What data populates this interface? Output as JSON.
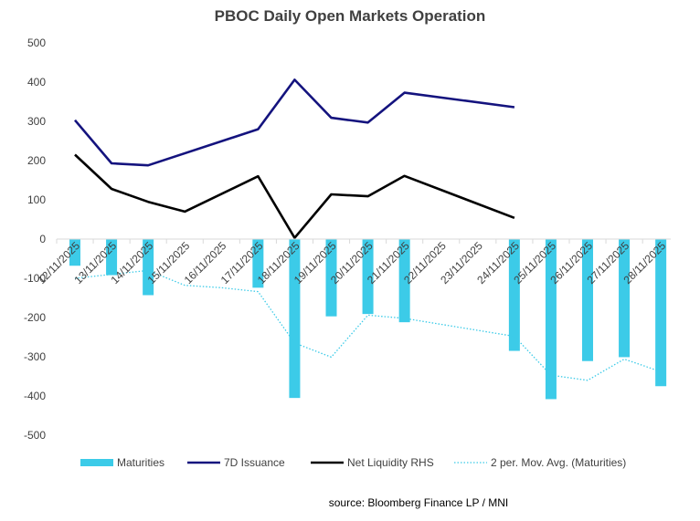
{
  "chart_data": {
    "type": "bar",
    "title": "PBOC Daily Open Markets Operation",
    "categories": [
      "12/11/2025",
      "13/11/2025",
      "14/11/2025",
      "15/11/2025",
      "16/11/2025",
      "17/11/2025",
      "18/11/2025",
      "19/11/2025",
      "20/11/2025",
      "21/11/2025",
      "22/11/2025",
      "23/11/2025",
      "24/11/2025",
      "25/11/2025",
      "26/11/2025",
      "27/11/2025",
      "28/11/2025"
    ],
    "ylim": [
      -500,
      500
    ],
    "yticks": [
      500,
      400,
      300,
      200,
      100,
      0,
      -100,
      -200,
      -300,
      -400,
      -500
    ],
    "series": [
      {
        "name": "Maturities",
        "kind": "bar",
        "color": "#3CCBE8",
        "values": [
          -68,
          -92,
          -143,
          null,
          null,
          -124,
          -405,
          -197,
          -191,
          -212,
          null,
          null,
          -285,
          -408,
          -311,
          -301,
          -375
        ]
      },
      {
        "name": "7D Issuance",
        "kind": "line",
        "color": "#14137E",
        "values": [
          303,
          193,
          188,
          null,
          null,
          280,
          406,
          309,
          297,
          373,
          null,
          null,
          336,
          null,
          null,
          null,
          null
        ]
      },
      {
        "name": "Net Liquidity RHS",
        "kind": "line",
        "color": "#000000",
        "values": [
          215,
          128,
          95,
          70,
          null,
          160,
          3,
          114,
          109,
          161,
          null,
          null,
          54,
          null,
          null,
          null,
          null
        ]
      },
      {
        "name": "2 per. Mov. Avg. (Maturities)",
        "kind": "dotted",
        "color": "#3CCBE8",
        "values": [
          -100,
          -90,
          -80,
          -118,
          -124,
          -134,
          -265,
          -301,
          -194,
          -202,
          null,
          null,
          -248,
          -347,
          -360,
          -306,
          -338
        ]
      }
    ],
    "legend_position": "bottom",
    "grid": false,
    "source": "source: Bloomberg Finance LP / MNI"
  }
}
